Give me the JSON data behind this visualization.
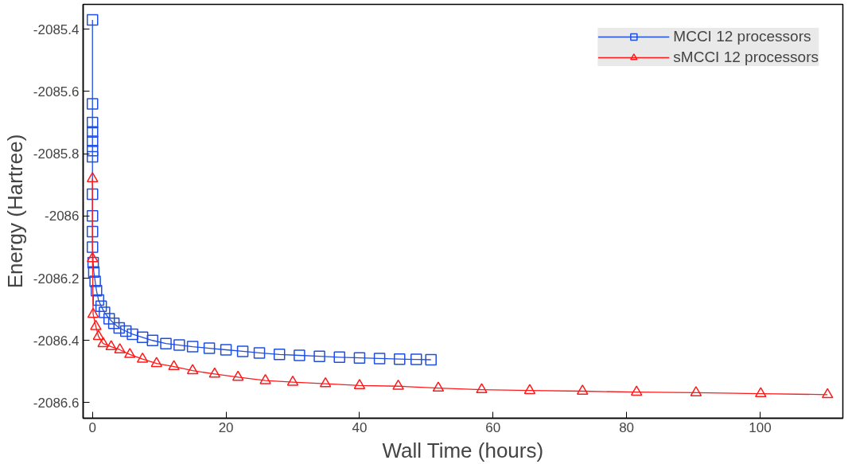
{
  "chart_data": {
    "type": "line",
    "xlabel": "Wall Time (hours)",
    "ylabel": "Energy (Hartree)",
    "xlim": [
      -1.4,
      112.4
    ],
    "ylim": [
      -2086.65,
      -2085.32
    ],
    "xticks": [
      0,
      20,
      40,
      60,
      80,
      100
    ],
    "yticks": [
      -2086.6,
      -2086.4,
      -2086.2,
      -2086,
      -2085.8,
      -2085.6,
      -2085.4
    ],
    "legend": "top right",
    "grid": false,
    "series": [
      {
        "name": "MCCI 12 processors",
        "color": "#1f4fe0",
        "marker": "square",
        "x": [
          0,
          0,
          0,
          0,
          0,
          0,
          0,
          0,
          0,
          0,
          0,
          0.1,
          0.2,
          0.4,
          0.6,
          0.9,
          1.3,
          1.8,
          2.5,
          3.2,
          4,
          5,
          6,
          7.5,
          9,
          11,
          13,
          15,
          17.5,
          20,
          22.5,
          25,
          28,
          31,
          34,
          37,
          40,
          43,
          46,
          48.5,
          50.7
        ],
        "values": [
          -2085.37,
          -2085.64,
          -2085.7,
          -2085.73,
          -2085.76,
          -2085.79,
          -2085.81,
          -2085.93,
          -2086.0,
          -2086.05,
          -2086.1,
          -2086.15,
          -2086.18,
          -2086.21,
          -2086.24,
          -2086.27,
          -2086.29,
          -2086.31,
          -2086.33,
          -2086.345,
          -2086.36,
          -2086.37,
          -2086.38,
          -2086.39,
          -2086.4,
          -2086.41,
          -2086.415,
          -2086.42,
          -2086.425,
          -2086.43,
          -2086.435,
          -2086.44,
          -2086.445,
          -2086.448,
          -2086.451,
          -2086.454,
          -2086.456,
          -2086.458,
          -2086.46,
          -2086.461,
          -2086.462
        ]
      },
      {
        "name": "sMCCI 12 processors",
        "color": "#ff1a1a",
        "marker": "triangle",
        "x": [
          0,
          0,
          0.1,
          0.5,
          0.9,
          1.6,
          2.8,
          4.1,
          5.6,
          7.5,
          9.6,
          12.2,
          15,
          18.3,
          21.8,
          25.9,
          30,
          34.9,
          40,
          45.8,
          51.8,
          58.3,
          65.5,
          73.4,
          81.5,
          90.4,
          100.1,
          110.1
        ],
        "values": [
          -2085.88,
          -2086.137,
          -2086.316,
          -2086.355,
          -2086.387,
          -2086.41,
          -2086.42,
          -2086.43,
          -2086.445,
          -2086.46,
          -2086.474,
          -2086.484,
          -2086.497,
          -2086.508,
          -2086.518,
          -2086.529,
          -2086.534,
          -2086.539,
          -2086.545,
          -2086.547,
          -2086.553,
          -2086.558,
          -2086.561,
          -2086.563,
          -2086.566,
          -2086.568,
          -2086.571,
          -2086.574
        ]
      }
    ]
  }
}
